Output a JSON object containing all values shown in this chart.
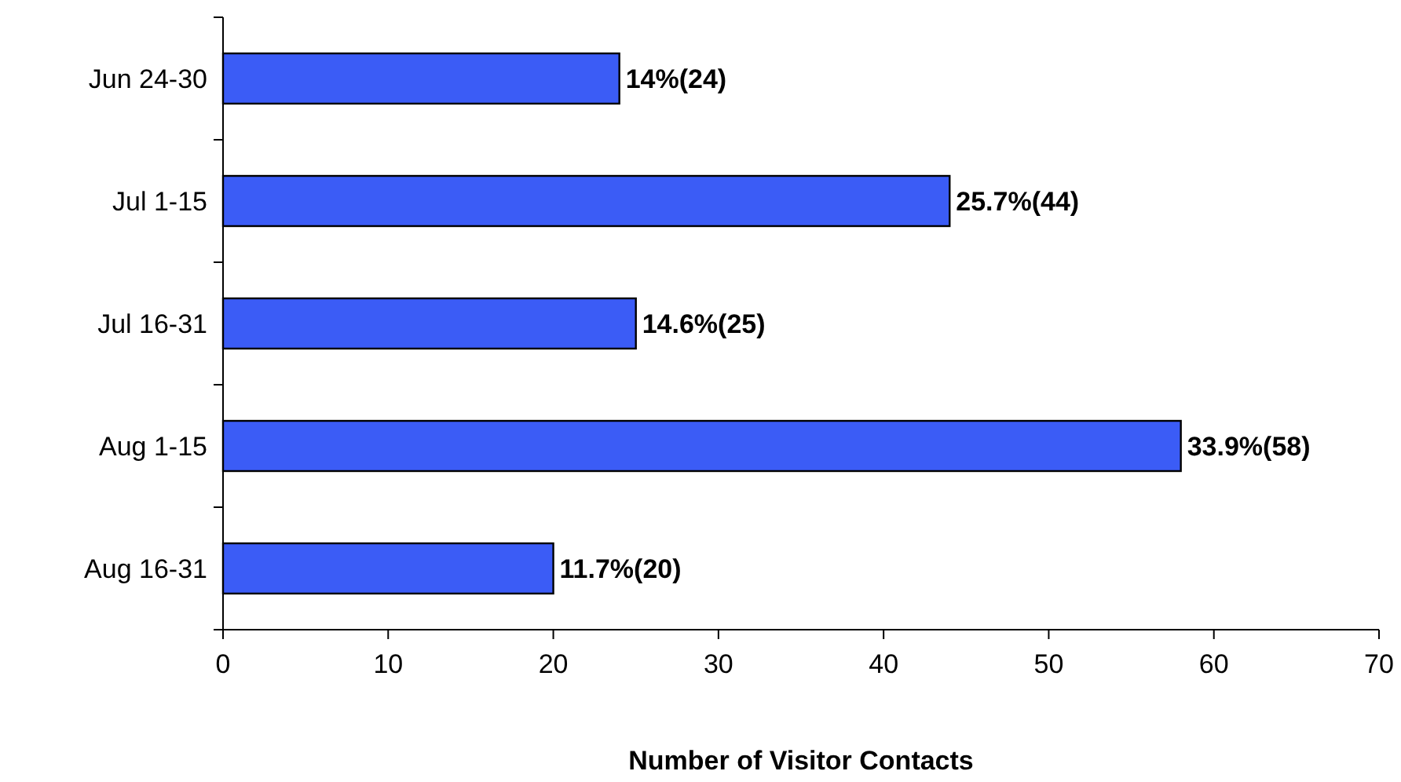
{
  "chart_data": {
    "type": "bar",
    "orientation": "horizontal",
    "xlabel": "Number of Visitor Contacts",
    "categories": [
      "Jun 24-30",
      "Jul 1-15",
      "Jul 16-31",
      "Aug 1-15",
      "Aug 16-31"
    ],
    "values": [
      24,
      44,
      25,
      58,
      20
    ],
    "color": "#3b5cf6",
    "value_labels": [
      "14%(24)",
      "25.7%(44)",
      "14.6%(25)",
      "33.9%(58)",
      "11.7%(20)"
    ],
    "xlim": [
      0,
      70
    ],
    "xticks": [
      0,
      10,
      20,
      30,
      40,
      50,
      60,
      70
    ],
    "grid": false
  }
}
